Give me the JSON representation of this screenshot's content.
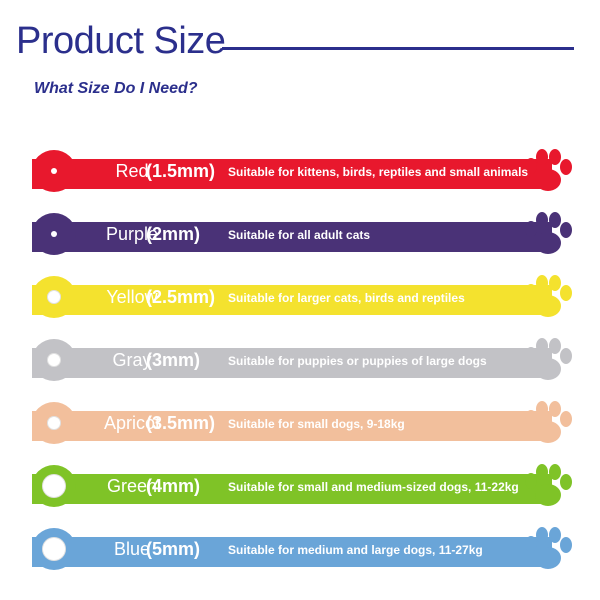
{
  "header": {
    "title": "Product Size",
    "subtitle": "What Size Do I Need?"
  },
  "rows": [
    {
      "color_name": "Red",
      "size": "(1.5mm)",
      "description": "Suitable for kittens, birds, reptiles and small animals",
      "color": "#e8182d",
      "hole": "small"
    },
    {
      "color_name": "Purple",
      "size": "(2mm)",
      "description": "Suitable for all adult cats",
      "color": "#4a3277",
      "hole": "small"
    },
    {
      "color_name": "Yellow",
      "size": "(2.5mm)",
      "description": "Suitable for larger cats, birds and reptiles",
      "color": "#f4e22e",
      "hole": "medium"
    },
    {
      "color_name": "Gray",
      "size": "(3mm)",
      "description": "Suitable for puppies or puppies of large dogs",
      "color": "#c2c2c6",
      "hole": "medium"
    },
    {
      "color_name": "Apricot",
      "size": "(3.5mm)",
      "description": "Suitable for small dogs, 9-18kg",
      "color": "#f2bf9c",
      "hole": "medium"
    },
    {
      "color_name": "Green",
      "size": "(4mm)",
      "description": "Suitable for small and medium-sized dogs, 11-22kg",
      "color": "#7fc327",
      "hole": "large"
    },
    {
      "color_name": "Blue",
      "size": "(5mm)",
      "description": "Suitable for medium and large dogs, 11-27kg",
      "color": "#6aa5d8",
      "hole": "large"
    }
  ]
}
